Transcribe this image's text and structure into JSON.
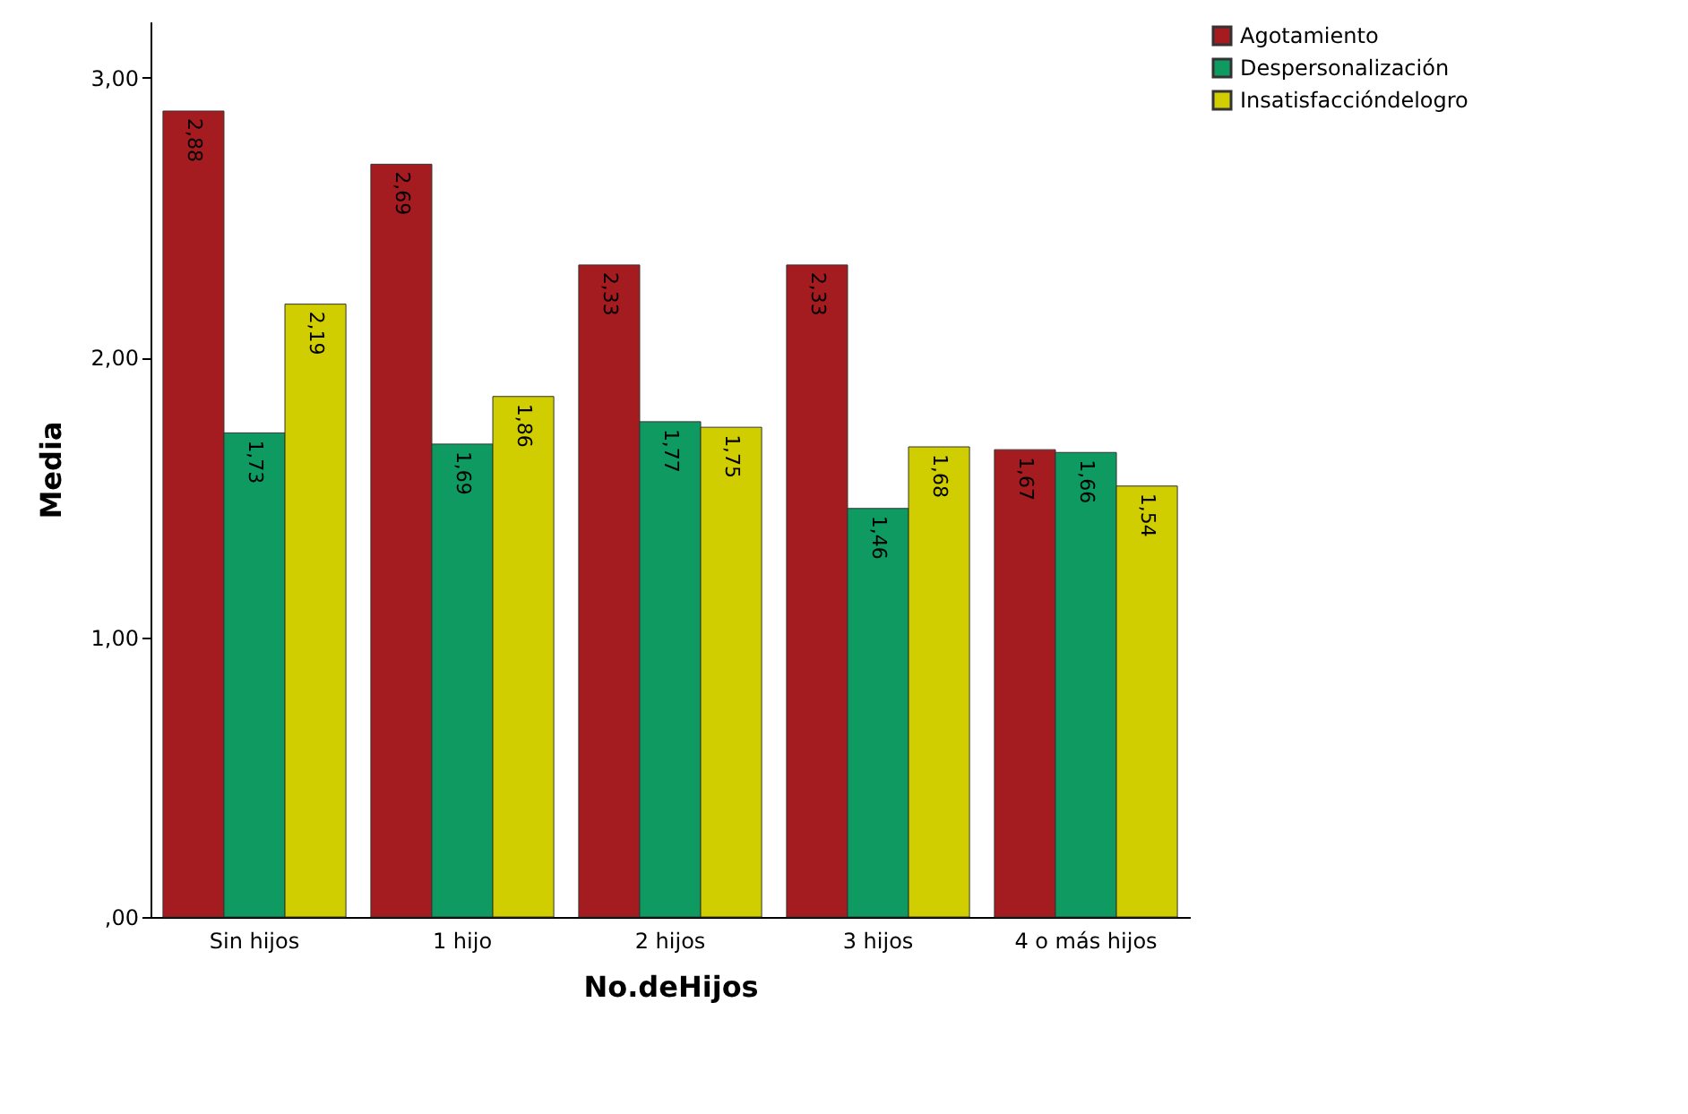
{
  "chart_data": {
    "type": "bar",
    "xlabel": "No.deHijos",
    "ylabel": "Media",
    "categories": [
      "Sin hijos",
      "1 hijo",
      "2 hijos",
      "3 hijos",
      "4 o más hijos"
    ],
    "series": [
      {
        "name": "Agotamiento",
        "color": "#a51c20",
        "values": [
          2.88,
          2.69,
          2.33,
          2.33,
          1.67
        ],
        "value_labels": [
          "2,88",
          "2,69",
          "2,33",
          "2,33",
          "1,67"
        ]
      },
      {
        "name": "Despersonalización",
        "color": "#0f9a62",
        "values": [
          1.73,
          1.69,
          1.77,
          1.46,
          1.66
        ],
        "value_labels": [
          "1,73",
          "1,69",
          "1,77",
          "1,46",
          "1,66"
        ]
      },
      {
        "name": "Insatisfaccióndelogro",
        "color": "#d0cd00",
        "values": [
          2.19,
          1.86,
          1.75,
          1.68,
          1.54
        ],
        "value_labels": [
          "2,19",
          "1,86",
          "1,75",
          "1,68",
          "1,54"
        ]
      }
    ],
    "ylim": [
      0,
      3.2
    ],
    "yticks": [
      {
        "value": 0,
        "label": ",00"
      },
      {
        "value": 1,
        "label": "1,00"
      },
      {
        "value": 2,
        "label": "2,00"
      },
      {
        "value": 3,
        "label": "3,00"
      }
    ],
    "grid": false,
    "legend": "top right"
  }
}
